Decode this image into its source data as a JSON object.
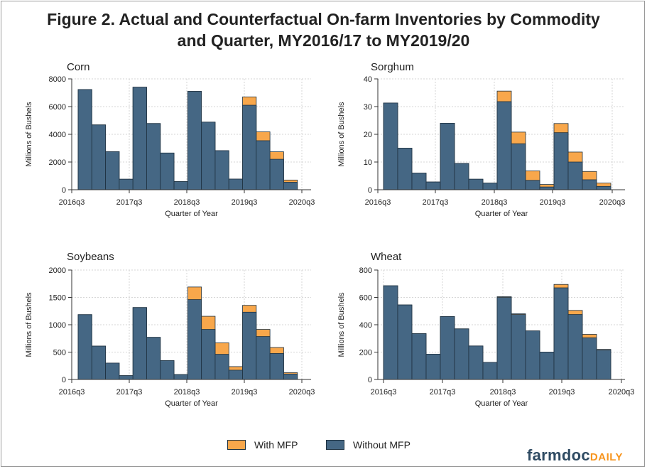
{
  "figure": {
    "title_line1": "Figure 2. Actual and Counterfactual On-farm Inventories by Commodity",
    "title_line2": "and Quarter, MY2016/17 to MY2019/20"
  },
  "legend": {
    "with_label": "With MFP",
    "without_label": "Without MFP"
  },
  "logo": {
    "part1": "farmdoc",
    "part2": "DAILY"
  },
  "colors": {
    "with_mfp": "#f8a74b",
    "without_mfp": "#456784",
    "bar_edge": "#1e3140",
    "grid": "#d6d6d6",
    "axis": "#333333"
  },
  "chart_data": [
    {
      "type": "bar",
      "title": "Corn",
      "xlabel": "Quarter of Year",
      "ylabel": "Millions of Bushels",
      "ylim": [
        0,
        8000
      ],
      "yticks": [
        0,
        2000,
        4000,
        6000,
        8000
      ],
      "xticks": [
        "2016q3",
        "2017q3",
        "2018q3",
        "2019q3",
        "2020q3"
      ],
      "grid": true,
      "series": [
        {
          "name": "Without MFP",
          "values": [
            7230,
            4680,
            2750,
            760,
            7400,
            4780,
            2650,
            590,
            7100,
            4880,
            2820,
            770,
            6100,
            3540,
            2200,
            540
          ]
        },
        {
          "name": "With MFP",
          "values": [
            7230,
            4680,
            2750,
            760,
            7400,
            4780,
            2650,
            590,
            7100,
            4880,
            2820,
            770,
            6700,
            4180,
            2740,
            700
          ]
        }
      ]
    },
    {
      "type": "bar",
      "title": "Sorghum",
      "xlabel": "Quarter of Year",
      "ylabel": "Millions of Bushels",
      "ylim": [
        0,
        40
      ],
      "yticks": [
        0,
        10,
        20,
        30,
        40
      ],
      "xticks": [
        "2016q3",
        "2017q3",
        "2018q3",
        "2019q3",
        "2020q3"
      ],
      "grid": true,
      "series": [
        {
          "name": "Without MFP",
          "values": [
            31.3,
            15.0,
            6.0,
            2.8,
            24.0,
            9.5,
            3.8,
            2.4,
            31.8,
            16.6,
            3.4,
            1.0,
            20.6,
            10.0,
            3.6,
            1.2
          ]
        },
        {
          "name": "With MFP",
          "values": [
            31.3,
            15.0,
            6.0,
            2.8,
            24.0,
            9.5,
            3.8,
            2.4,
            35.6,
            20.8,
            6.8,
            1.9,
            23.9,
            13.6,
            6.6,
            2.4
          ]
        }
      ]
    },
    {
      "type": "bar",
      "title": "Soybeans",
      "xlabel": "Quarter of Year",
      "ylabel": "Millions of Bushels",
      "ylim": [
        0,
        2000
      ],
      "yticks": [
        0,
        500,
        1000,
        1500,
        2000
      ],
      "xticks": [
        "2016q3",
        "2017q3",
        "2018q3",
        "2019q3",
        "2020q3"
      ],
      "grid": true,
      "series": [
        {
          "name": "Without MFP",
          "values": [
            1185,
            610,
            300,
            70,
            1315,
            770,
            345,
            90,
            1460,
            915,
            460,
            170,
            1230,
            785,
            475,
            100
          ]
        },
        {
          "name": "With MFP",
          "values": [
            1185,
            610,
            300,
            70,
            1315,
            770,
            345,
            90,
            1690,
            1155,
            670,
            235,
            1355,
            915,
            585,
            125
          ]
        }
      ]
    },
    {
      "type": "bar",
      "title": "Wheat",
      "xlabel": "Quarter of Year",
      "ylabel": "Millions of Bushels",
      "ylim": [
        0,
        800
      ],
      "yticks": [
        0,
        200,
        400,
        600,
        800
      ],
      "xticks": [
        "2016q3",
        "2017q3",
        "2018q3",
        "2019q3",
        "2020q3"
      ],
      "grid": true,
      "series": [
        {
          "name": "Without MFP",
          "values": [
            685,
            545,
            335,
            185,
            460,
            370,
            245,
            125,
            600,
            475,
            355,
            200,
            670,
            475,
            305,
            215
          ]
        },
        {
          "name": "With MFP",
          "values": [
            685,
            545,
            335,
            185,
            460,
            370,
            245,
            125,
            605,
            480,
            355,
            200,
            695,
            505,
            330,
            220
          ]
        }
      ]
    }
  ]
}
